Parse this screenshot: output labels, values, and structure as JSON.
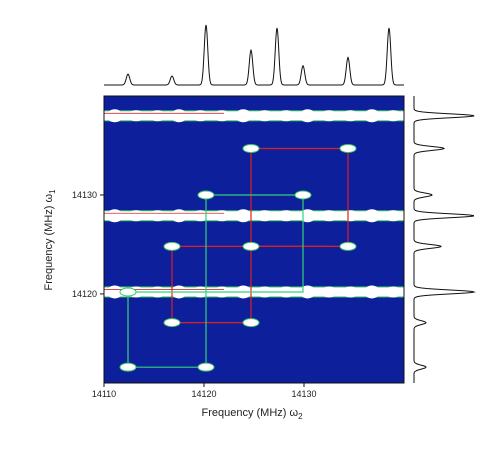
{
  "chart_data": {
    "type": "heatmap",
    "title": "",
    "xlabel": "Frequency (MHz) ω",
    "xlabel_sub": "2",
    "ylabel": "Frequency (MHz) ω",
    "ylabel_sub": "1",
    "xlim": [
      14110,
      14140
    ],
    "ylim": [
      14111,
      14140
    ],
    "x_ticks": [
      14110,
      14120,
      14130
    ],
    "y_ticks": [
      14120,
      14130
    ],
    "background_color": "#0d1f9a",
    "peak_color": "#ffffff",
    "peak_edge_color": "#39c56a",
    "grid": false,
    "bands": [
      {
        "y": 14138.0,
        "x_start": 14110,
        "x_end": 14140
      },
      {
        "y": 14127.9,
        "x_start": 14110,
        "x_end": 14140
      },
      {
        "y": 14120.2,
        "x_start": 14110,
        "x_end": 14140
      }
    ],
    "peaks": [
      {
        "x": 14124.7,
        "y": 14134.7
      },
      {
        "x": 14134.4,
        "y": 14134.7
      },
      {
        "x": 14120.2,
        "y": 14130.0
      },
      {
        "x": 14129.9,
        "y": 14130.0
      },
      {
        "x": 14116.8,
        "y": 14124.8
      },
      {
        "x": 14124.7,
        "y": 14124.8
      },
      {
        "x": 14134.4,
        "y": 14124.8
      },
      {
        "x": 14112.4,
        "y": 14120.2
      },
      {
        "x": 14116.8,
        "y": 14117.1
      },
      {
        "x": 14124.7,
        "y": 14117.1
      },
      {
        "x": 14112.4,
        "y": 14112.6
      },
      {
        "x": 14120.2,
        "y": 14112.6
      }
    ],
    "loops": [
      {
        "color": "#e02020",
        "points": [
          [
            14124.7,
            14134.7
          ],
          [
            14134.4,
            14134.7
          ],
          [
            14134.4,
            14124.8
          ],
          [
            14124.7,
            14124.8
          ],
          [
            14124.7,
            14134.7
          ]
        ]
      },
      {
        "color": "#e02020",
        "points": [
          [
            14116.8,
            14124.8
          ],
          [
            14124.7,
            14124.8
          ],
          [
            14124.7,
            14117.1
          ],
          [
            14116.8,
            14117.1
          ],
          [
            14116.8,
            14124.8
          ]
        ]
      },
      {
        "color": "#e02020",
        "points": [
          [
            14124.7,
            14124.8
          ],
          [
            14132.6,
            14124.8
          ]
        ]
      },
      {
        "color": "#33d27a",
        "points": [
          [
            14120.2,
            14130.0
          ],
          [
            14129.9,
            14130.0
          ],
          [
            14129.9,
            14120.2
          ],
          [
            14120.2,
            14120.2
          ]
        ]
      },
      {
        "color": "#33d27a",
        "points": [
          [
            14120.2,
            14130.0
          ],
          [
            14120.2,
            14112.6
          ],
          [
            14112.4,
            14112.6
          ],
          [
            14112.4,
            14120.2
          ],
          [
            14120.2,
            14120.2
          ]
        ]
      }
    ],
    "top_projection": {
      "peaks": [
        {
          "x": 14112.4,
          "height": 0.18
        },
        {
          "x": 14116.8,
          "height": 0.15
        },
        {
          "x": 14120.2,
          "height": 1.0
        },
        {
          "x": 14124.7,
          "height": 0.58
        },
        {
          "x": 14127.3,
          "height": 0.95
        },
        {
          "x": 14129.9,
          "height": 0.32
        },
        {
          "x": 14134.4,
          "height": 0.46
        },
        {
          "x": 14138.5,
          "height": 0.95
        }
      ]
    },
    "right_projection": {
      "peaks": [
        {
          "y": 14138.0,
          "height": 1.0
        },
        {
          "y": 14134.7,
          "height": 0.5
        },
        {
          "y": 14130.0,
          "height": 0.3
        },
        {
          "y": 14127.9,
          "height": 1.0
        },
        {
          "y": 14124.8,
          "height": 0.45
        },
        {
          "y": 14120.2,
          "height": 1.0
        },
        {
          "y": 14117.1,
          "height": 0.2
        },
        {
          "y": 14112.6,
          "height": 0.2
        }
      ]
    }
  }
}
